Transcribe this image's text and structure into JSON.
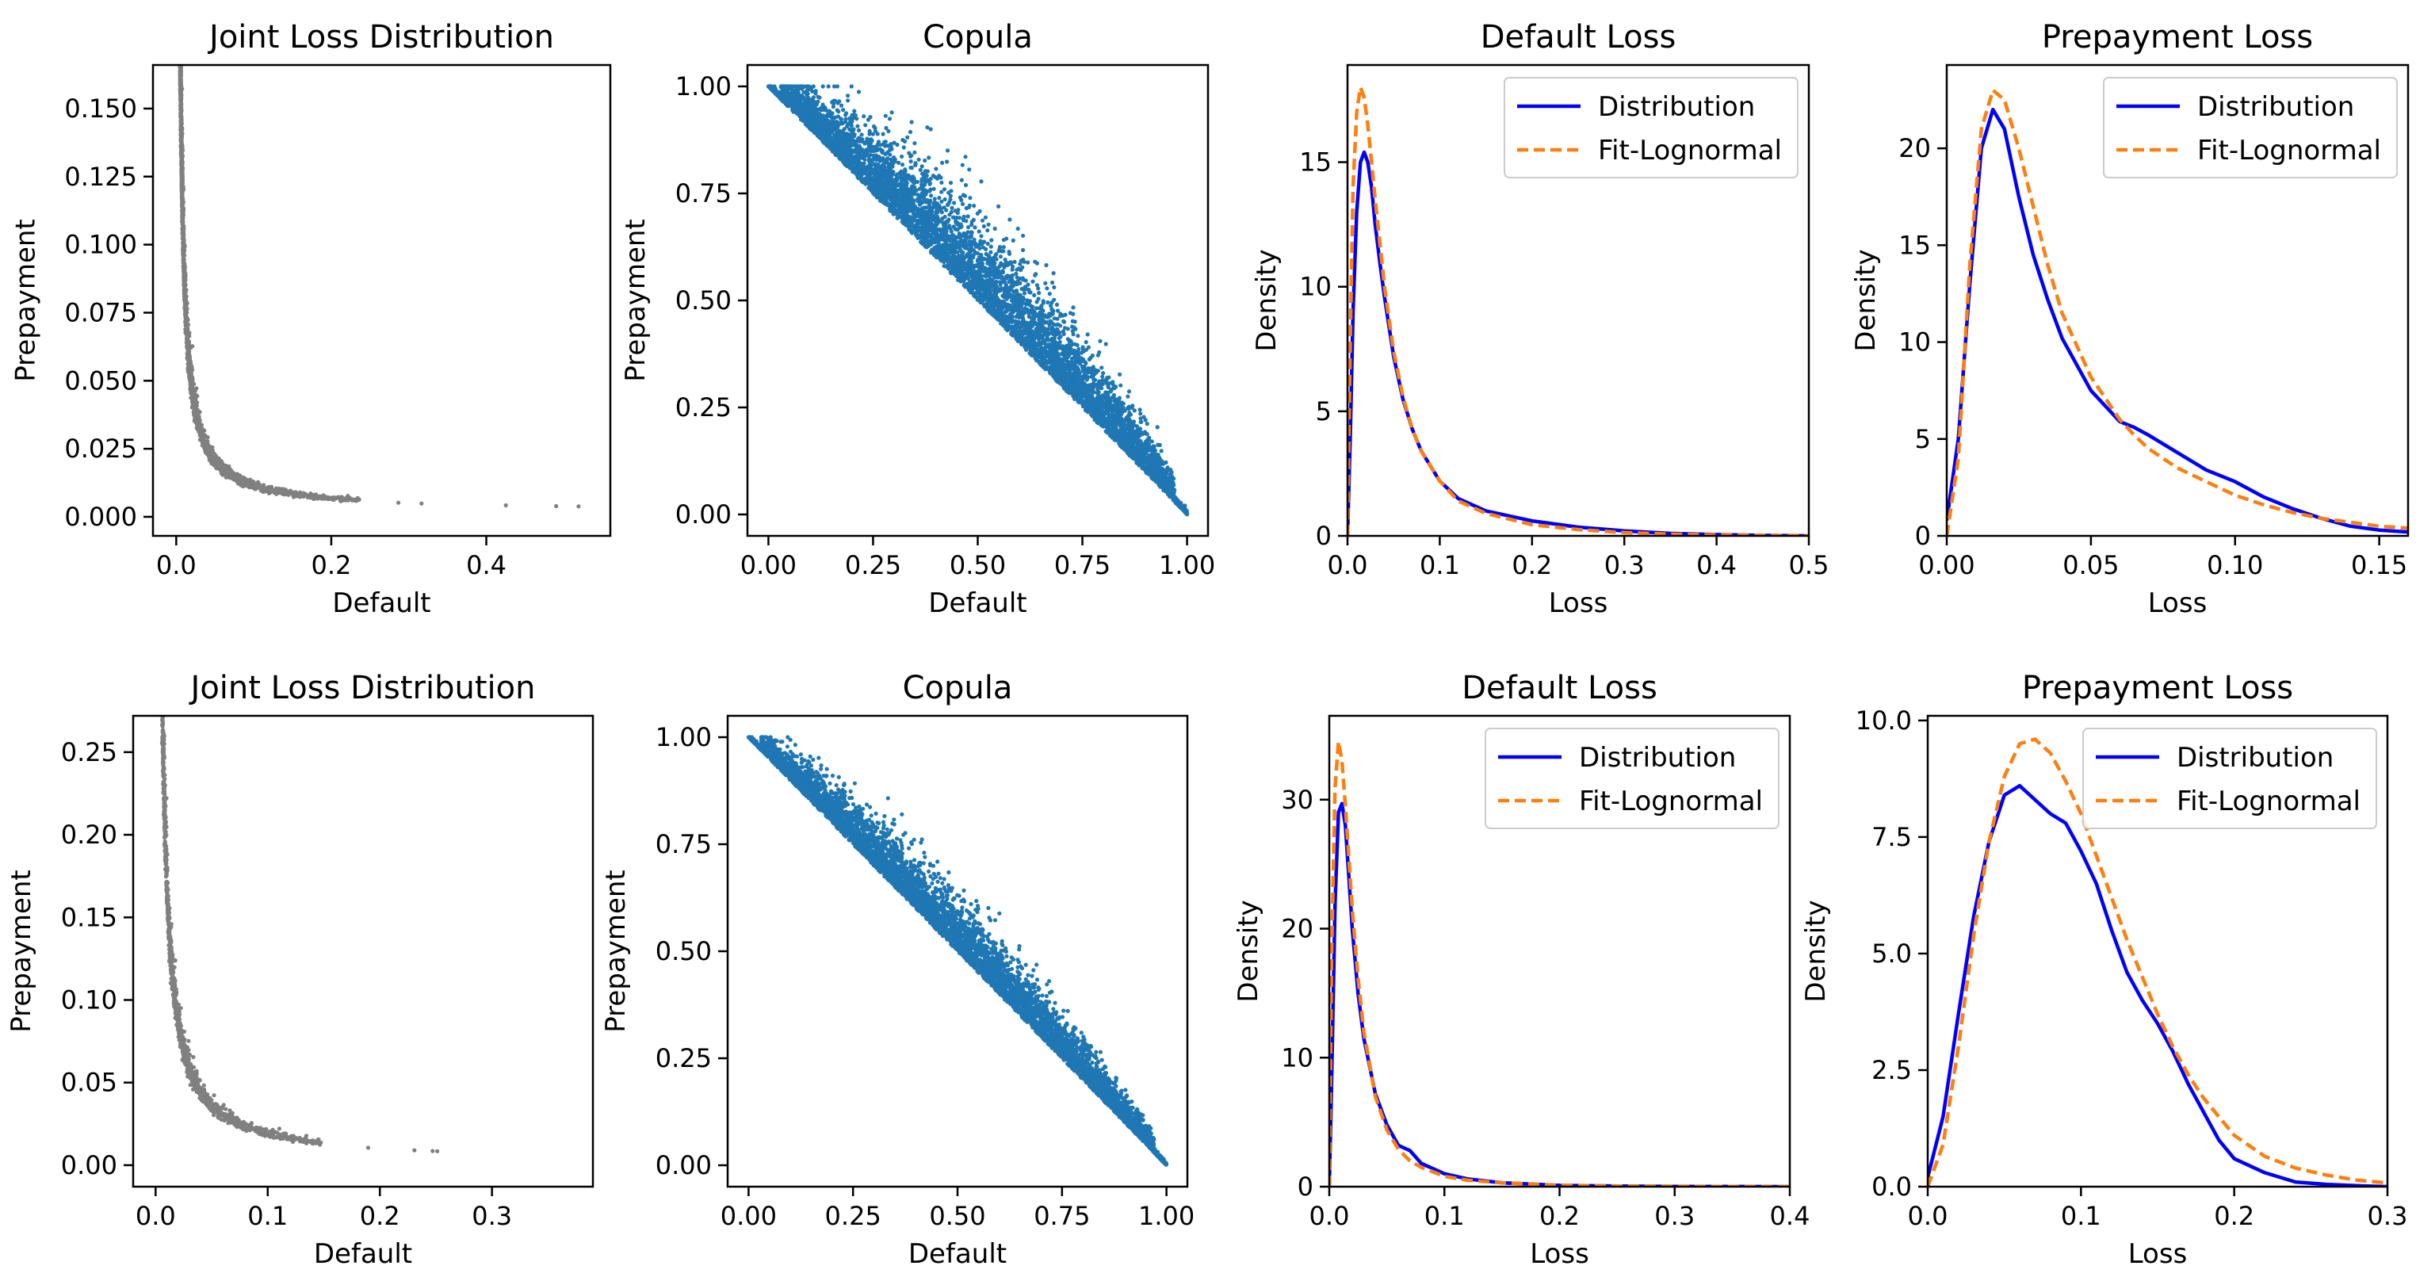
{
  "colors": {
    "joint_points": "#808080",
    "copula_points": "#1f77b4",
    "distribution_line": "#0000ff",
    "fit_line": "#ff7f0e"
  },
  "chart_data": [
    {
      "type": "scatter",
      "title": "Joint Loss Distribution",
      "xlabel": "Default",
      "ylabel": "Prepayment",
      "xlim": [
        -0.03,
        0.56
      ],
      "ylim": [
        -0.007,
        0.166
      ],
      "xticks": [
        "0.0",
        "0.2",
        "0.4"
      ],
      "xtick_values": [
        0.0,
        0.2,
        0.4
      ],
      "yticks": [
        "0.000",
        "0.025",
        "0.050",
        "0.075",
        "0.100",
        "0.125",
        "0.150"
      ],
      "ytick_values": [
        0.0,
        0.025,
        0.05,
        0.075,
        0.1,
        0.125,
        0.15
      ],
      "shape": "hyperbolic",
      "curve": {
        "a": 0.00085,
        "b": 0.0022
      },
      "x_range": [
        0.005,
        0.55
      ],
      "points_shown": 2600
    },
    {
      "type": "scatter",
      "title": "Copula",
      "xlabel": "Default",
      "ylabel": "Prepayment",
      "xlim": [
        -0.05,
        1.05
      ],
      "ylim": [
        -0.05,
        1.05
      ],
      "xticks": [
        "0.00",
        "0.25",
        "0.50",
        "0.75",
        "1.00"
      ],
      "xtick_values": [
        0.0,
        0.25,
        0.5,
        0.75,
        1.0
      ],
      "yticks": [
        "0.00",
        "0.25",
        "0.50",
        "0.75",
        "1.00"
      ],
      "ytick_values": [
        0.0,
        0.25,
        0.5,
        0.75,
        1.0
      ],
      "shape": "negative-dependence",
      "spread": 0.07,
      "points_shown": 6000
    },
    {
      "type": "line",
      "title": "Default Loss",
      "xlabel": "Loss",
      "ylabel": "Density",
      "xlim": [
        0.0,
        0.5
      ],
      "ylim": [
        0,
        18.9
      ],
      "xticks": [
        "0.0",
        "0.1",
        "0.2",
        "0.3",
        "0.4",
        "0.5"
      ],
      "xtick_values": [
        0.0,
        0.1,
        0.2,
        0.3,
        0.4,
        0.5
      ],
      "yticks": [
        "0",
        "5",
        "10",
        "15"
      ],
      "ytick_values": [
        0,
        5,
        10,
        15
      ],
      "legend": "top-right",
      "series": [
        {
          "name": "Distribution",
          "style": "solid",
          "x": [
            0.0,
            0.003,
            0.006,
            0.01,
            0.014,
            0.018,
            0.022,
            0.026,
            0.03,
            0.035,
            0.04,
            0.05,
            0.06,
            0.07,
            0.08,
            0.1,
            0.12,
            0.15,
            0.2,
            0.25,
            0.3,
            0.35,
            0.4,
            0.45,
            0.5
          ],
          "y": [
            0.0,
            4.0,
            9.0,
            13.0,
            15.0,
            15.4,
            15.0,
            14.0,
            12.5,
            11.0,
            9.6,
            7.2,
            5.5,
            4.3,
            3.4,
            2.2,
            1.5,
            1.0,
            0.6,
            0.35,
            0.2,
            0.1,
            0.05,
            0.02,
            0.0
          ]
        },
        {
          "name": "Fit-Lognormal",
          "style": "dashed",
          "x": [
            0.0,
            0.003,
            0.006,
            0.01,
            0.014,
            0.018,
            0.022,
            0.026,
            0.03,
            0.035,
            0.04,
            0.05,
            0.06,
            0.07,
            0.08,
            0.1,
            0.12,
            0.15,
            0.2,
            0.25,
            0.3,
            0.35,
            0.4,
            0.45,
            0.5
          ],
          "y": [
            0.0,
            8.0,
            14.0,
            17.0,
            18.0,
            17.6,
            16.5,
            15.0,
            13.5,
            11.8,
            10.0,
            7.4,
            5.6,
            4.3,
            3.4,
            2.2,
            1.4,
            0.9,
            0.45,
            0.25,
            0.13,
            0.07,
            0.04,
            0.02,
            0.01
          ]
        }
      ]
    },
    {
      "type": "line",
      "title": "Prepayment Loss",
      "xlabel": "Loss",
      "ylabel": "Density",
      "xlim": [
        0.0,
        0.16
      ],
      "ylim": [
        0,
        24.3
      ],
      "xticks": [
        "0.00",
        "0.05",
        "0.10",
        "0.15"
      ],
      "xtick_values": [
        0.0,
        0.05,
        0.1,
        0.15
      ],
      "yticks": [
        "0",
        "5",
        "10",
        "15",
        "20"
      ],
      "ytick_values": [
        0,
        5,
        10,
        15,
        20
      ],
      "legend": "top-right",
      "series": [
        {
          "name": "Distribution",
          "style": "solid",
          "x": [
            0.0,
            0.004,
            0.008,
            0.012,
            0.016,
            0.02,
            0.025,
            0.03,
            0.035,
            0.04,
            0.05,
            0.06,
            0.065,
            0.07,
            0.08,
            0.09,
            0.1,
            0.11,
            0.12,
            0.13,
            0.14,
            0.15,
            0.16
          ],
          "y": [
            0.8,
            5.0,
            13.0,
            20.0,
            22.0,
            21.0,
            17.5,
            14.5,
            12.2,
            10.2,
            7.5,
            5.9,
            5.6,
            5.2,
            4.3,
            3.4,
            2.8,
            2.0,
            1.4,
            0.9,
            0.5,
            0.3,
            0.2
          ]
        },
        {
          "name": "Fit-Lognormal",
          "style": "dashed",
          "x": [
            0.0,
            0.004,
            0.008,
            0.012,
            0.016,
            0.02,
            0.025,
            0.03,
            0.035,
            0.04,
            0.05,
            0.06,
            0.065,
            0.07,
            0.08,
            0.09,
            0.1,
            0.11,
            0.12,
            0.13,
            0.14,
            0.15,
            0.16
          ],
          "y": [
            0.0,
            4.0,
            14.0,
            21.0,
            23.0,
            22.5,
            20.0,
            17.0,
            14.0,
            11.5,
            8.2,
            6.0,
            5.2,
            4.5,
            3.5,
            2.8,
            2.1,
            1.6,
            1.2,
            0.9,
            0.7,
            0.5,
            0.4
          ]
        }
      ]
    },
    {
      "type": "scatter",
      "title": "Joint Loss Distribution",
      "xlabel": "Default",
      "ylabel": "Prepayment",
      "xlim": [
        -0.02,
        0.39
      ],
      "ylim": [
        -0.013,
        0.272
      ],
      "xticks": [
        "0.0",
        "0.1",
        "0.2",
        "0.3"
      ],
      "xtick_values": [
        0.0,
        0.1,
        0.2,
        0.3
      ],
      "yticks": [
        "0.00",
        "0.05",
        "0.10",
        "0.15",
        "0.20",
        "0.25"
      ],
      "ytick_values": [
        0.0,
        0.05,
        0.1,
        0.15,
        0.2,
        0.25
      ],
      "shape": "hyperbolic",
      "curve": {
        "a": 0.0016,
        "b": 0.0021
      },
      "x_range": [
        0.002,
        0.38
      ],
      "points_shown": 2600
    },
    {
      "type": "scatter",
      "title": "Copula",
      "xlabel": "Default",
      "ylabel": "Prepayment",
      "xlim": [
        -0.05,
        1.05
      ],
      "ylim": [
        -0.05,
        1.05
      ],
      "xticks": [
        "0.00",
        "0.25",
        "0.50",
        "0.75",
        "1.00"
      ],
      "xtick_values": [
        0.0,
        0.25,
        0.5,
        0.75,
        1.0
      ],
      "yticks": [
        "0.00",
        "0.25",
        "0.50",
        "0.75",
        "1.00"
      ],
      "ytick_values": [
        0.0,
        0.25,
        0.5,
        0.75,
        1.0
      ],
      "shape": "negative-dependence",
      "spread": 0.045,
      "points_shown": 6000
    },
    {
      "type": "line",
      "title": "Default Loss",
      "xlabel": "Loss",
      "ylabel": "Density",
      "xlim": [
        0.0,
        0.4
      ],
      "ylim": [
        0,
        36.5
      ],
      "xticks": [
        "0.0",
        "0.1",
        "0.2",
        "0.3",
        "0.4"
      ],
      "xtick_values": [
        0.0,
        0.1,
        0.2,
        0.3,
        0.4
      ],
      "yticks": [
        "0",
        "10",
        "20",
        "30"
      ],
      "ytick_values": [
        0,
        10,
        20,
        30
      ],
      "legend": "top-right",
      "series": [
        {
          "name": "Distribution",
          "style": "solid",
          "x": [
            0.0,
            0.002,
            0.005,
            0.008,
            0.011,
            0.014,
            0.017,
            0.02,
            0.025,
            0.03,
            0.04,
            0.05,
            0.06,
            0.07,
            0.08,
            0.1,
            0.12,
            0.15,
            0.2,
            0.25,
            0.3,
            0.35,
            0.4
          ],
          "y": [
            0.0,
            8.0,
            22.0,
            29.0,
            29.7,
            28.0,
            24.0,
            20.0,
            15.0,
            11.5,
            7.2,
            4.8,
            3.2,
            2.8,
            1.8,
            1.0,
            0.6,
            0.3,
            0.1,
            0.05,
            0.02,
            0.01,
            0.0
          ]
        },
        {
          "name": "Fit-Lognormal",
          "style": "dashed",
          "x": [
            0.0,
            0.002,
            0.005,
            0.008,
            0.011,
            0.014,
            0.017,
            0.02,
            0.025,
            0.03,
            0.04,
            0.05,
            0.06,
            0.07,
            0.08,
            0.1,
            0.12,
            0.15,
            0.2,
            0.25,
            0.3,
            0.35,
            0.4
          ],
          "y": [
            0.0,
            18.0,
            31.0,
            34.5,
            33.0,
            29.5,
            25.5,
            21.5,
            16.2,
            12.0,
            7.0,
            4.4,
            2.9,
            2.0,
            1.5,
            0.8,
            0.5,
            0.3,
            0.1,
            0.05,
            0.03,
            0.01,
            0.0
          ]
        }
      ]
    },
    {
      "type": "line",
      "title": "Prepayment Loss",
      "xlabel": "Loss",
      "ylabel": "Density",
      "xlim": [
        0.0,
        0.3
      ],
      "ylim": [
        0,
        10.1
      ],
      "xticks": [
        "0.0",
        "0.1",
        "0.2",
        "0.3"
      ],
      "xtick_values": [
        0.0,
        0.1,
        0.2,
        0.3
      ],
      "yticks": [
        "0.0",
        "2.5",
        "5.0",
        "7.5",
        "10.0"
      ],
      "ytick_values": [
        0.0,
        2.5,
        5.0,
        7.5,
        10.0
      ],
      "legend": "top-right",
      "series": [
        {
          "name": "Distribution",
          "style": "solid",
          "x": [
            0.0,
            0.01,
            0.02,
            0.03,
            0.04,
            0.05,
            0.06,
            0.07,
            0.08,
            0.09,
            0.1,
            0.11,
            0.12,
            0.13,
            0.14,
            0.15,
            0.16,
            0.17,
            0.18,
            0.19,
            0.2,
            0.22,
            0.24,
            0.26,
            0.28,
            0.3
          ],
          "y": [
            0.2,
            1.5,
            3.7,
            5.8,
            7.4,
            8.4,
            8.6,
            8.3,
            8.0,
            7.8,
            7.2,
            6.5,
            5.5,
            4.6,
            4.0,
            3.5,
            2.9,
            2.2,
            1.6,
            1.0,
            0.6,
            0.3,
            0.1,
            0.05,
            0.02,
            0.0
          ]
        },
        {
          "name": "Fit-Lognormal",
          "style": "dashed",
          "x": [
            0.0,
            0.01,
            0.02,
            0.03,
            0.04,
            0.05,
            0.06,
            0.07,
            0.08,
            0.09,
            0.1,
            0.11,
            0.12,
            0.13,
            0.14,
            0.15,
            0.16,
            0.17,
            0.18,
            0.19,
            0.2,
            0.22,
            0.24,
            0.26,
            0.28,
            0.3
          ],
          "y": [
            0.0,
            0.9,
            3.0,
            5.4,
            7.4,
            8.8,
            9.5,
            9.6,
            9.3,
            8.7,
            8.0,
            7.1,
            6.2,
            5.3,
            4.5,
            3.7,
            3.0,
            2.4,
            1.9,
            1.5,
            1.1,
            0.65,
            0.4,
            0.25,
            0.14,
            0.08
          ]
        }
      ]
    }
  ]
}
